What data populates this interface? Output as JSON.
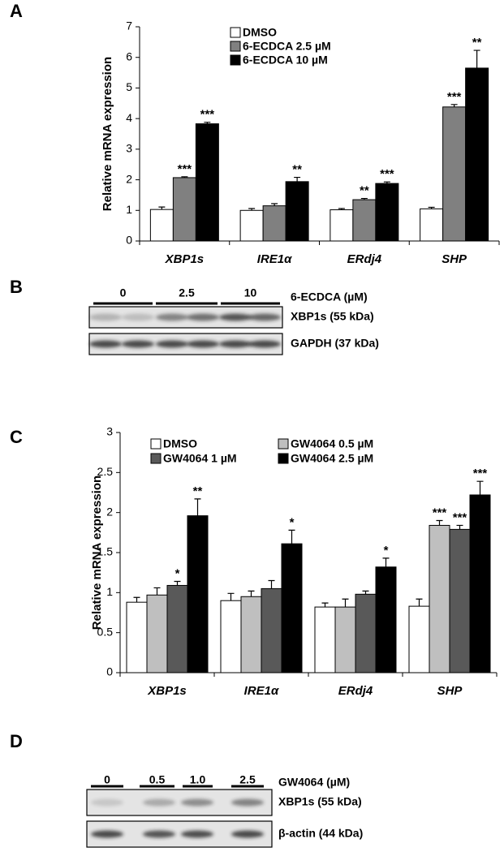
{
  "chart_data": [
    {
      "type": "bar",
      "panel": "A",
      "y_label": "Relative mRNA expression",
      "categories": [
        "XBP1s",
        "IRE1α",
        "ERdj4",
        "SHP"
      ],
      "series": [
        {
          "name": "DMSO",
          "color": "#ffffff",
          "values": [
            1.03,
            1.0,
            1.02,
            1.05
          ],
          "errors": [
            0.08,
            0.06,
            0.04,
            0.05
          ],
          "stars": [
            null,
            null,
            null,
            null
          ]
        },
        {
          "name": "6-ECDCA 2.5 µM",
          "color": "#808080",
          "values": [
            2.07,
            1.15,
            1.35,
            4.38
          ],
          "errors": [
            0.03,
            0.07,
            0.04,
            0.08
          ],
          "stars": [
            "***",
            null,
            "**",
            "***"
          ]
        },
        {
          "name": "6-ECDCA 10 µM",
          "color": "#000000",
          "values": [
            3.83,
            1.94,
            1.88,
            5.65
          ],
          "errors": [
            0.05,
            0.14,
            0.05,
            0.58
          ],
          "stars": [
            "***",
            "**",
            "***",
            "**"
          ]
        }
      ],
      "ylim": [
        0,
        7
      ],
      "yticks": [
        0,
        1,
        2,
        3,
        4,
        5,
        6,
        7
      ]
    },
    {
      "type": "bar",
      "panel": "C",
      "y_label": "Relative mRNA expression",
      "categories": [
        "XBP1s",
        "IRE1α",
        "ERdj4",
        "SHP"
      ],
      "series": [
        {
          "name": "DMSO",
          "color": "#ffffff",
          "values": [
            0.88,
            0.9,
            0.82,
            0.83
          ],
          "errors": [
            0.06,
            0.09,
            0.05,
            0.09
          ],
          "stars": [
            null,
            null,
            null,
            null
          ]
        },
        {
          "name": "GW4064 0.5 µM",
          "color": "#bfbfbf",
          "values": [
            0.97,
            0.95,
            0.82,
            1.84
          ],
          "errors": [
            0.09,
            0.07,
            0.1,
            0.06
          ],
          "stars": [
            null,
            null,
            null,
            "***"
          ]
        },
        {
          "name": "GW4064 1 µM",
          "color": "#595959",
          "values": [
            1.09,
            1.05,
            0.98,
            1.79
          ],
          "errors": [
            0.05,
            0.1,
            0.04,
            0.05
          ],
          "stars": [
            "*",
            null,
            null,
            "***"
          ]
        },
        {
          "name": "GW4064 2.5 µM",
          "color": "#000000",
          "values": [
            1.96,
            1.61,
            1.32,
            2.22
          ],
          "errors": [
            0.21,
            0.17,
            0.11,
            0.17
          ],
          "stars": [
            "**",
            "*",
            "*",
            "***"
          ]
        }
      ],
      "ylim": [
        0,
        3
      ],
      "yticks": [
        0,
        0.5,
        1,
        1.5,
        2,
        2.5,
        3
      ]
    }
  ],
  "blots": [
    {
      "panel": "B",
      "treatment": "6-ECDCA (µM)",
      "groups": [
        "0",
        "2.5",
        "10"
      ],
      "rows": [
        "XBP1s (55 kDa)",
        "GAPDH (37 kDa)"
      ]
    },
    {
      "panel": "D",
      "treatment": "GW4064 (µM)",
      "groups": [
        "0",
        "0.5",
        "1.0",
        "2.5"
      ],
      "rows": [
        "XBP1s (55 kDa)",
        "β-actin (44 kDa)"
      ]
    }
  ]
}
